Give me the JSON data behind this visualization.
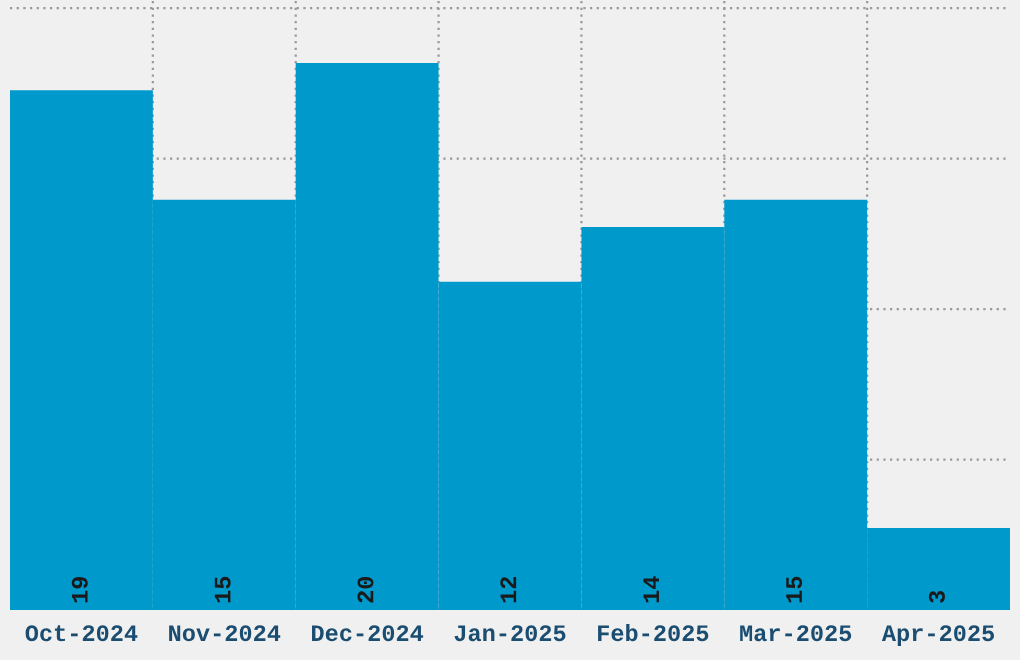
{
  "chart_data": {
    "type": "bar",
    "categories": [
      "Oct-2024",
      "Nov-2024",
      "Dec-2024",
      "Jan-2025",
      "Feb-2025",
      "Mar-2025",
      "Apr-2025"
    ],
    "values": [
      19,
      15,
      20,
      12,
      14,
      15,
      3
    ],
    "color": "#0099cc",
    "ylim": [
      0,
      22.3
    ],
    "yticks": [
      {
        "value": 5.5,
        "label": null
      },
      {
        "value": 11,
        "label": null
      },
      {
        "value": 16.5,
        "label": null
      },
      {
        "value": 22,
        "label": null
      }
    ],
    "tick_labels": "x",
    "grid": true,
    "data_labels": true
  }
}
